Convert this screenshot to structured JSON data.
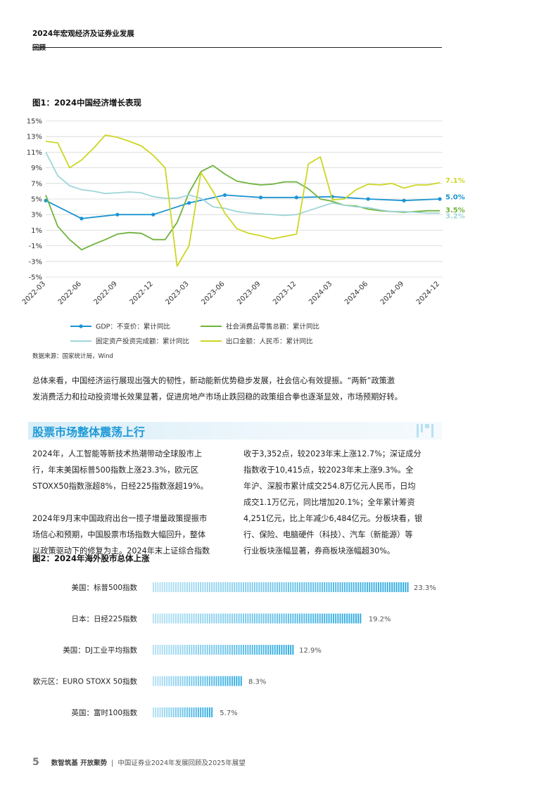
{
  "header": {
    "title": "2024年宏观经济及证券业发展",
    "subtitle": "回顾"
  },
  "figure1": {
    "title": "图1：2024中国经济增长表现",
    "source_note": "数据来源：国家统计局，Wind"
  },
  "paragraph1": {
    "line1": "总体来看，中国经济运行展现出强大的韧性，新动能新优势稳步发展，社会信心有效提振。“两新”政策激",
    "line2": "发消费活力和拉动投资增长效果显著，促进房地产市场止跌回稳的政策组合拳也逐渐显效，市场预期好转。"
  },
  "section": {
    "title": "股票市场整体震荡上行"
  },
  "left_col": {
    "lines": [
      "2024年，人工智能等新技术热潮带动全球股市上",
      "行，年末美国标普500指数上涨23.3%，欧元区",
      "STOXX50指数涨超8%，日经225指数涨超19%。",
      "",
      "2024年9月末中国政府出台一揽子增量政策提振市",
      "场信心和预期，中国股票市场指数大幅回升，整体",
      "以政策驱动下的修复为主。2024年末上证综合指数"
    ]
  },
  "right_col": {
    "lines": [
      "收于3,352点，较2023年末上涨12.7%；深证成分",
      "指数收于10,415点，较2023年末上涨9.3%。全",
      "年沪、深股市累计成交254.8万亿元人民币，日均",
      "成交1.1万亿元，同比增加20.1%；全年累计筹资",
      "4,251亿元，比上年减少6,484亿元。分板块看，银",
      "行、保险、电脑硬件（科技）、汽车（新能源）等",
      "行业板块涨幅显著，券商板块涨幅超30%。"
    ]
  },
  "figure2": {
    "title": "图2：2024年海外股市总体上涨"
  },
  "footer": {
    "page": "5",
    "brand": "数智筑基 开放聚势",
    "sep": "|",
    "doc": "中国证券业2024年发展回顾及2025年展望"
  },
  "colors": {
    "accent": "#1f9ad6",
    "gdp": "#1b95d2",
    "retail": "#6fb33d",
    "fai": "#9fd6d8",
    "export": "#cdd622",
    "bar": "#29a9e0",
    "grid": "#d6d6d6"
  },
  "chart_data": [
    {
      "type": "line",
      "title": "图1：2024中国经济增长表现",
      "y_ticks": [
        "15%",
        "13%",
        "11%",
        "9%",
        "7%",
        "5%",
        "3%",
        "1%",
        "-1%",
        "-3%",
        "-5%"
      ],
      "ylim": [
        -5,
        15
      ],
      "x_ticks": [
        "2022-03",
        "2022-06",
        "2022-09",
        "2022-12",
        "2023-03",
        "2023-06",
        "2023-09",
        "2023-12",
        "2024-03",
        "2024-06",
        "2024-09",
        "2024-12"
      ],
      "x": [
        0,
        3,
        6,
        9,
        12,
        15,
        18,
        21,
        24,
        27,
        30,
        33
      ],
      "series": [
        {
          "name": "GDP：不变价：累计同比",
          "color": "#1b95d2",
          "markers": true,
          "x": [
            0,
            3,
            6,
            9,
            12,
            15,
            18,
            21,
            24,
            27,
            30,
            33
          ],
          "values": [
            4.8,
            2.5,
            3.0,
            3.0,
            4.5,
            5.5,
            5.2,
            5.2,
            5.3,
            5.0,
            4.8,
            5.0
          ],
          "end_label": "5.0%"
        },
        {
          "name": "社会消费品零售总额：累计同比",
          "color": "#6fb33d",
          "markers": false,
          "x": [
            0,
            1,
            2,
            3,
            4,
            5,
            6,
            7,
            8,
            9,
            10,
            11,
            12,
            13,
            14,
            15,
            16,
            17,
            18,
            19,
            20,
            21,
            22,
            23,
            24,
            25,
            26,
            27,
            28,
            29,
            30,
            31,
            32,
            33
          ],
          "values": [
            5.5,
            1.5,
            -0.2,
            -1.5,
            -0.8,
            -0.2,
            0.5,
            0.7,
            0.6,
            -0.2,
            -0.2,
            2.0,
            5.8,
            8.5,
            9.3,
            8.2,
            7.3,
            7.0,
            6.8,
            6.9,
            7.2,
            7.2,
            6.3,
            5.0,
            4.7,
            4.2,
            4.1,
            3.7,
            3.5,
            3.4,
            3.3,
            3.4,
            3.5,
            3.5
          ],
          "end_label": "3.5%"
        },
        {
          "name": "固定资产投资完成额：累计同比",
          "color": "#9fd6d8",
          "markers": false,
          "x": [
            0,
            1,
            2,
            3,
            4,
            5,
            6,
            7,
            8,
            9,
            10,
            11,
            12,
            13,
            14,
            15,
            16,
            17,
            18,
            19,
            20,
            21,
            22,
            23,
            24,
            25,
            26,
            27,
            28,
            29,
            30,
            31,
            32,
            33
          ],
          "values": [
            11.0,
            8.0,
            6.7,
            6.2,
            6.0,
            5.7,
            5.8,
            5.9,
            5.8,
            5.3,
            5.1,
            5.1,
            5.5,
            5.1,
            4.0,
            3.8,
            3.4,
            3.2,
            3.1,
            3.0,
            2.9,
            3.0,
            3.5,
            4.0,
            4.5,
            4.2,
            4.0,
            3.9,
            3.6,
            3.4,
            3.4,
            3.3,
            3.2,
            3.2
          ],
          "end_label": "3.2%"
        },
        {
          "name": "出口金额：人民币：累计同比",
          "color": "#cdd622",
          "markers": false,
          "x": [
            0,
            1,
            2,
            3,
            4,
            5,
            6,
            7,
            8,
            9,
            10,
            11,
            12,
            13,
            14,
            15,
            16,
            17,
            18,
            19,
            20,
            21,
            22,
            23,
            24,
            25,
            26,
            27,
            28,
            29,
            30,
            31,
            32,
            33
          ],
          "values": [
            12.4,
            12.2,
            9.0,
            10.0,
            11.5,
            13.2,
            12.9,
            12.4,
            11.8,
            10.6,
            9.0,
            -3.6,
            -1.0,
            8.4,
            6.0,
            3.2,
            1.2,
            0.6,
            0.3,
            -0.1,
            0.2,
            0.5,
            9.5,
            10.4,
            4.9,
            5.0,
            6.2,
            6.9,
            6.8,
            7.0,
            6.4,
            6.8,
            6.8,
            7.1
          ],
          "end_label": "7.1%"
        }
      ]
    },
    {
      "type": "bar",
      "orientation": "horizontal",
      "title": "图2：2024年海外股市总体上涨",
      "categories": [
        "美国：标普500指数",
        "日本：日经225指数",
        "美国：DJ工业平均指数",
        "欧元区：EURO STOXX 50指数",
        "英国：富时100指数"
      ],
      "values": [
        23.3,
        19.2,
        12.9,
        8.3,
        5.7
      ],
      "value_labels": [
        "23.3%",
        "19.2%",
        "12.9%",
        "8.3%",
        "5.7%"
      ],
      "xlim": [
        0,
        25
      ]
    }
  ]
}
